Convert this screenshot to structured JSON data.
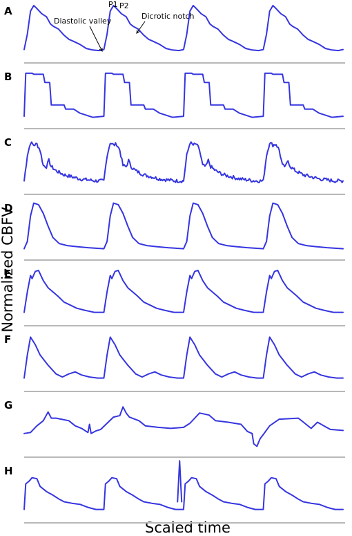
{
  "chart_data": {
    "type": "line",
    "xlabel": "Scaled time",
    "ylabel": "Normalized CBFV",
    "panels": [
      {
        "letter": "A",
        "name": "A",
        "beats": 4,
        "ylim": [
          0,
          1
        ],
        "beat": [
          [
            0,
            0.1
          ],
          [
            0.04,
            0.4
          ],
          [
            0.08,
            0.85
          ],
          [
            0.12,
            0.96
          ],
          [
            0.16,
            0.9
          ],
          [
            0.22,
            0.8
          ],
          [
            0.28,
            0.74
          ],
          [
            0.33,
            0.6
          ],
          [
            0.37,
            0.55
          ],
          [
            0.43,
            0.5
          ],
          [
            0.5,
            0.38
          ],
          [
            0.56,
            0.3
          ],
          [
            0.62,
            0.26
          ],
          [
            0.7,
            0.2
          ],
          [
            0.78,
            0.12
          ],
          [
            0.86,
            0.09
          ],
          [
            0.94,
            0.08
          ],
          [
            1,
            0.1
          ]
        ]
      },
      {
        "letter": "B",
        "name": "B",
        "beats": 4,
        "ylim": [
          0,
          1
        ],
        "beat": [
          [
            0,
            0.08
          ],
          [
            0.02,
            0.92
          ],
          [
            0.1,
            0.92
          ],
          [
            0.12,
            0.9
          ],
          [
            0.24,
            0.9
          ],
          [
            0.26,
            0.74
          ],
          [
            0.32,
            0.74
          ],
          [
            0.34,
            0.3
          ],
          [
            0.5,
            0.3
          ],
          [
            0.52,
            0.22
          ],
          [
            0.62,
            0.22
          ],
          [
            0.7,
            0.14
          ],
          [
            0.78,
            0.1
          ],
          [
            0.86,
            0.06
          ],
          [
            1,
            0.08
          ]
        ]
      },
      {
        "letter": "C",
        "name": "C",
        "beats": 4,
        "ylim": [
          0,
          1
        ],
        "noise": 0.035,
        "beat": [
          [
            0,
            0.1
          ],
          [
            0.04,
            0.6
          ],
          [
            0.08,
            0.85
          ],
          [
            0.12,
            0.8
          ],
          [
            0.16,
            0.82
          ],
          [
            0.2,
            0.7
          ],
          [
            0.24,
            0.4
          ],
          [
            0.28,
            0.38
          ],
          [
            0.31,
            0.5
          ],
          [
            0.34,
            0.38
          ],
          [
            0.4,
            0.3
          ],
          [
            0.5,
            0.22
          ],
          [
            0.6,
            0.18
          ],
          [
            0.7,
            0.14
          ],
          [
            0.8,
            0.12
          ],
          [
            0.9,
            0.1
          ],
          [
            1,
            0.1
          ]
        ]
      },
      {
        "letter": "D",
        "name": "D",
        "beats": 4,
        "ylim": [
          0,
          1
        ],
        "beat": [
          [
            0,
            0.06
          ],
          [
            0.04,
            0.2
          ],
          [
            0.08,
            0.7
          ],
          [
            0.12,
            0.95
          ],
          [
            0.18,
            0.92
          ],
          [
            0.24,
            0.75
          ],
          [
            0.3,
            0.5
          ],
          [
            0.36,
            0.28
          ],
          [
            0.44,
            0.16
          ],
          [
            0.54,
            0.12
          ],
          [
            0.66,
            0.1
          ],
          [
            0.8,
            0.08
          ],
          [
            1,
            0.06
          ]
        ]
      },
      {
        "letter": "E",
        "name": "E",
        "beats": 4,
        "ylim": [
          0,
          1
        ],
        "beat": [
          [
            0,
            0.1
          ],
          [
            0.04,
            0.5
          ],
          [
            0.08,
            0.82
          ],
          [
            0.1,
            0.76
          ],
          [
            0.14,
            0.9
          ],
          [
            0.18,
            0.92
          ],
          [
            0.24,
            0.72
          ],
          [
            0.3,
            0.58
          ],
          [
            0.36,
            0.5
          ],
          [
            0.42,
            0.42
          ],
          [
            0.5,
            0.3
          ],
          [
            0.58,
            0.24
          ],
          [
            0.66,
            0.18
          ],
          [
            0.76,
            0.14
          ],
          [
            0.88,
            0.1
          ],
          [
            1,
            0.1
          ]
        ]
      },
      {
        "letter": "F",
        "name": "F",
        "beats": 4,
        "ylim": [
          0,
          1
        ],
        "beat": [
          [
            0,
            0.1
          ],
          [
            0.04,
            0.55
          ],
          [
            0.08,
            0.9
          ],
          [
            0.14,
            0.75
          ],
          [
            0.2,
            0.55
          ],
          [
            0.3,
            0.35
          ],
          [
            0.4,
            0.18
          ],
          [
            0.48,
            0.12
          ],
          [
            0.56,
            0.18
          ],
          [
            0.64,
            0.22
          ],
          [
            0.72,
            0.16
          ],
          [
            0.82,
            0.12
          ],
          [
            0.92,
            0.1
          ],
          [
            1,
            0.1
          ]
        ]
      },
      {
        "letter": "G",
        "name": "G",
        "beats": 1,
        "ylim": [
          0,
          1
        ],
        "beat": [
          [
            0,
            0.3
          ],
          [
            0.02,
            0.32
          ],
          [
            0.04,
            0.45
          ],
          [
            0.06,
            0.55
          ],
          [
            0.075,
            0.72
          ],
          [
            0.085,
            0.6
          ],
          [
            0.1,
            0.6
          ],
          [
            0.14,
            0.55
          ],
          [
            0.16,
            0.45
          ],
          [
            0.18,
            0.4
          ],
          [
            0.2,
            0.32
          ],
          [
            0.205,
            0.48
          ],
          [
            0.21,
            0.3
          ],
          [
            0.225,
            0.35
          ],
          [
            0.24,
            0.38
          ],
          [
            0.26,
            0.5
          ],
          [
            0.28,
            0.62
          ],
          [
            0.3,
            0.65
          ],
          [
            0.31,
            0.82
          ],
          [
            0.32,
            0.7
          ],
          [
            0.33,
            0.62
          ],
          [
            0.36,
            0.55
          ],
          [
            0.38,
            0.45
          ],
          [
            0.42,
            0.42
          ],
          [
            0.46,
            0.4
          ],
          [
            0.5,
            0.42
          ],
          [
            0.52,
            0.5
          ],
          [
            0.55,
            0.7
          ],
          [
            0.58,
            0.66
          ],
          [
            0.6,
            0.55
          ],
          [
            0.64,
            0.52
          ],
          [
            0.68,
            0.48
          ],
          [
            0.7,
            0.34
          ],
          [
            0.715,
            0.3
          ],
          [
            0.72,
            0.1
          ],
          [
            0.73,
            0.05
          ],
          [
            0.74,
            0.2
          ],
          [
            0.75,
            0.28
          ],
          [
            0.77,
            0.45
          ],
          [
            0.8,
            0.58
          ],
          [
            0.86,
            0.6
          ],
          [
            0.88,
            0.5
          ],
          [
            0.9,
            0.4
          ],
          [
            0.92,
            0.52
          ],
          [
            0.94,
            0.45
          ],
          [
            0.96,
            0.38
          ],
          [
            1,
            0.36
          ]
        ]
      },
      {
        "letter": "H",
        "name": "H",
        "beats": 4,
        "ylim": [
          0,
          1
        ],
        "beat": [
          [
            0,
            0.1
          ],
          [
            0.02,
            0.6
          ],
          [
            0.06,
            0.65
          ],
          [
            0.1,
            0.72
          ],
          [
            0.16,
            0.7
          ],
          [
            0.2,
            0.55
          ],
          [
            0.28,
            0.45
          ],
          [
            0.36,
            0.38
          ],
          [
            0.44,
            0.3
          ],
          [
            0.5,
            0.25
          ],
          [
            0.6,
            0.22
          ],
          [
            0.7,
            0.2
          ],
          [
            0.8,
            0.14
          ],
          [
            0.9,
            0.1
          ],
          [
            1,
            0.1
          ]
        ]
      }
    ],
    "annotations": [
      {
        "text": "Diastolic valley",
        "x": 0.96,
        "y": 0.08,
        "panel": "A"
      },
      {
        "text": "P1",
        "x": 0.12,
        "y": 0.96,
        "panel": "A"
      },
      {
        "text": "P2",
        "x": 0.2,
        "y": 0.9,
        "panel": "A"
      },
      {
        "text": "Dicrotic notch",
        "x": 0.33,
        "y": 0.6,
        "panel": "A"
      }
    ]
  }
}
